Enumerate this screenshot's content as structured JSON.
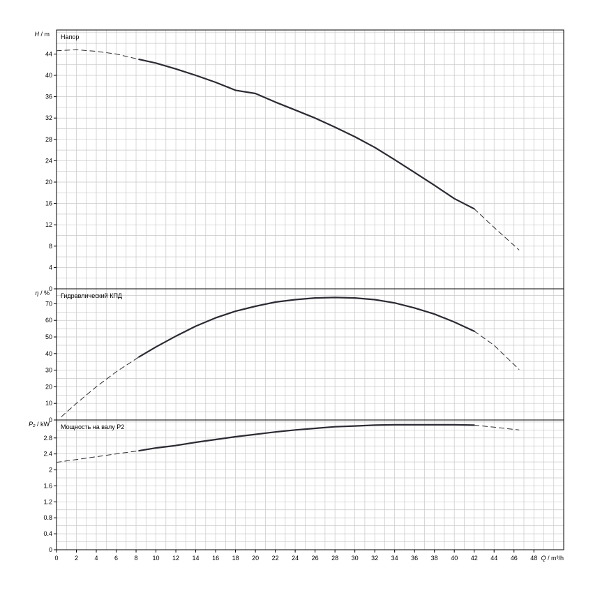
{
  "chart_data": [
    {
      "type": "line",
      "title": "Напор",
      "ylabel_symbol": "H",
      "ylabel_unit": "m",
      "xlim": [
        0,
        51
      ],
      "ylim": [
        0,
        48.5
      ],
      "yticks": [
        0,
        4,
        8,
        12,
        16,
        20,
        24,
        28,
        32,
        36,
        40,
        44
      ],
      "ytick_labels": [
        "0",
        "4",
        "8",
        "12",
        "16",
        "20",
        "24",
        "28",
        "32",
        "36",
        "40",
        "44"
      ],
      "series": [
        {
          "style": "dashed",
          "x": [
            0,
            2,
            4,
            6,
            8.3
          ],
          "y": [
            44.6,
            44.8,
            44.5,
            44.0,
            43.0
          ]
        },
        {
          "style": "solid",
          "x": [
            8.3,
            10,
            12,
            14,
            16,
            18,
            20,
            22,
            24,
            26,
            28,
            30,
            32,
            34,
            36,
            38,
            40,
            42
          ],
          "y": [
            43.0,
            42.3,
            41.2,
            40.0,
            38.7,
            37.2,
            36.6,
            35.0,
            33.5,
            32.0,
            30.3,
            28.5,
            26.5,
            24.2,
            21.8,
            19.4,
            16.9,
            15.0
          ]
        },
        {
          "style": "dashed",
          "x": [
            42,
            44,
            46.5
          ],
          "y": [
            15.0,
            11.5,
            7.3
          ]
        }
      ]
    },
    {
      "type": "line",
      "title": "Гидравлический КПД",
      "ylabel_symbol": "η",
      "ylabel_unit": "%",
      "xlim": [
        0,
        51
      ],
      "ylim": [
        0,
        79
      ],
      "yticks": [
        0,
        10,
        20,
        30,
        40,
        50,
        60,
        70
      ],
      "ytick_labels": [
        "0",
        "10",
        "20",
        "30",
        "40",
        "50",
        "60",
        "70"
      ],
      "series": [
        {
          "style": "dashed",
          "x": [
            0.5,
            2,
            4,
            6,
            8.3
          ],
          "y": [
            2,
            10,
            20,
            29,
            38
          ]
        },
        {
          "style": "solid",
          "x": [
            8.3,
            10,
            12,
            14,
            16,
            18,
            20,
            22,
            24,
            26,
            28,
            30,
            32,
            34,
            36,
            38,
            40,
            42
          ],
          "y": [
            38,
            44,
            50.5,
            56.5,
            61.5,
            65.5,
            68.5,
            71,
            72.5,
            73.5,
            73.8,
            73.5,
            72.5,
            70.5,
            67.5,
            63.8,
            59,
            53.5
          ]
        },
        {
          "style": "dashed",
          "x": [
            42,
            44,
            46.5
          ],
          "y": [
            53.5,
            45,
            30.5
          ]
        }
      ]
    },
    {
      "type": "line",
      "title": "Мощность на валу P2",
      "ylabel_symbol": "P₂",
      "ylabel_unit": "kW",
      "xlabel_symbol": "Q",
      "xlabel_unit": "m³/h",
      "xlim": [
        0,
        51
      ],
      "ylim": [
        0,
        3.25
      ],
      "xticks": [
        0,
        2,
        4,
        6,
        8,
        10,
        12,
        14,
        16,
        18,
        20,
        22,
        24,
        26,
        28,
        30,
        32,
        34,
        36,
        38,
        40,
        42,
        44,
        46,
        48
      ],
      "xtick_labels": [
        "0",
        "2",
        "4",
        "6",
        "8",
        "10",
        "12",
        "14",
        "16",
        "18",
        "20",
        "22",
        "24",
        "26",
        "28",
        "30",
        "32",
        "34",
        "36",
        "38",
        "40",
        "42",
        "44",
        "46",
        "48"
      ],
      "yticks": [
        0,
        0.4,
        0.8,
        1.2,
        1.6,
        2,
        2.4,
        2.8
      ],
      "ytick_labels": [
        "0",
        "0.4",
        "0.8",
        "1.2",
        "1.6",
        "2",
        "2.4",
        "2.8"
      ],
      "series": [
        {
          "style": "dashed",
          "x": [
            0,
            2,
            4,
            6,
            8.3
          ],
          "y": [
            2.19,
            2.26,
            2.33,
            2.4,
            2.48
          ]
        },
        {
          "style": "solid",
          "x": [
            8.3,
            10,
            12,
            14,
            16,
            18,
            20,
            22,
            24,
            26,
            28,
            30,
            32,
            34,
            36,
            38,
            40,
            42
          ],
          "y": [
            2.48,
            2.55,
            2.61,
            2.69,
            2.76,
            2.83,
            2.89,
            2.95,
            3.0,
            3.04,
            3.08,
            3.1,
            3.12,
            3.13,
            3.13,
            3.13,
            3.13,
            3.12
          ]
        },
        {
          "style": "dashed",
          "x": [
            42,
            44,
            46.5
          ],
          "y": [
            3.12,
            3.07,
            3.0
          ]
        }
      ]
    }
  ]
}
